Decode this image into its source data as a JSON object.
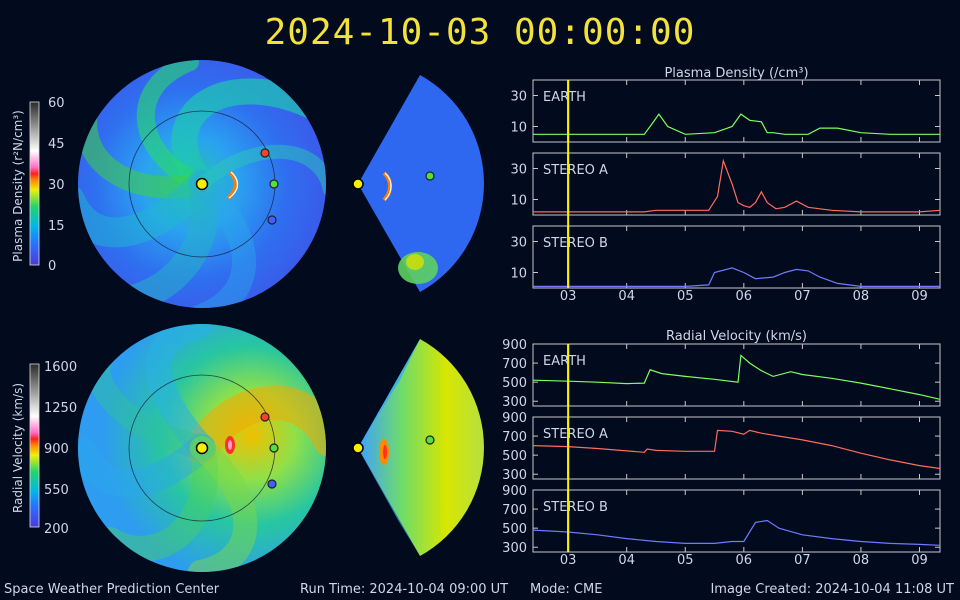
{
  "title": "2024-10-03  00:00:00",
  "footer": {
    "left": "Space Weather Prediction Center",
    "run_time": "Run Time: 2024-10-04 09:00 UT",
    "mode": "Mode: CME",
    "created": "Image Created: 2024-10-04 11:08 UT"
  },
  "colorbars": [
    {
      "label": "Plasma Density (r²N/cm³)",
      "ticks": [
        "0",
        "15",
        "30",
        "45",
        "60"
      ]
    },
    {
      "label": "Radial Velocity (km/s)",
      "ticks": [
        "200",
        "550",
        "900",
        "1250",
        "1600"
      ]
    }
  ],
  "colors": {
    "earth": "#7cff5e",
    "stereo_a": "#ff6b5e",
    "stereo_b": "#6e7bff",
    "marker": "#f4f000",
    "accent": "#f2e23a"
  },
  "chart_data": [
    {
      "type": "line",
      "title": "Plasma Density (/cm³)",
      "x_tick_labels": [
        "03",
        "04",
        "05",
        "06",
        "07",
        "08",
        "09"
      ],
      "x_ticks_days": [
        3,
        4,
        5,
        6,
        7,
        8,
        9
      ],
      "xlim": [
        2.4,
        9.35
      ],
      "current_time_day": 3.0,
      "panels": [
        {
          "name": "EARTH",
          "color": "#7cff5e",
          "ylim": [
            0,
            40
          ],
          "yticks": [
            10,
            30
          ],
          "x": [
            2.4,
            3.0,
            4.0,
            4.3,
            4.4,
            4.55,
            4.7,
            5.0,
            5.5,
            5.8,
            5.95,
            6.1,
            6.3,
            6.4,
            6.5,
            6.7,
            6.9,
            7.1,
            7.3,
            7.6,
            8.0,
            8.5,
            9.0,
            9.35
          ],
          "y": [
            5,
            5,
            5,
            5,
            10,
            18,
            10,
            5,
            6,
            10,
            18,
            14,
            13,
            6,
            6,
            5,
            5,
            5,
            9,
            9,
            6,
            5,
            5,
            5
          ]
        },
        {
          "name": "STEREO A",
          "color": "#ff6b5e",
          "ylim": [
            0,
            40
          ],
          "yticks": [
            10,
            30
          ],
          "x": [
            2.4,
            3.5,
            4.3,
            4.5,
            5.4,
            5.55,
            5.65,
            5.8,
            5.9,
            6.0,
            6.1,
            6.2,
            6.3,
            6.4,
            6.55,
            6.7,
            6.9,
            7.1,
            7.5,
            8.0,
            8.5,
            9.0,
            9.35
          ],
          "y": [
            2,
            2,
            2,
            3,
            3,
            12,
            35,
            20,
            8,
            6,
            5,
            8,
            15,
            8,
            4,
            5,
            9,
            5,
            3,
            2,
            2,
            2,
            3
          ]
        },
        {
          "name": "STEREO B",
          "color": "#6e7bff",
          "ylim": [
            0,
            40
          ],
          "yticks": [
            10,
            30
          ],
          "x": [
            2.4,
            3.5,
            4.5,
            5.0,
            5.4,
            5.5,
            5.8,
            6.0,
            6.2,
            6.5,
            6.7,
            6.9,
            7.1,
            7.3,
            7.6,
            8.0,
            8.5,
            9.0,
            9.35
          ],
          "y": [
            1,
            1,
            1,
            1,
            2,
            10,
            13,
            10,
            6,
            7,
            10,
            12,
            11,
            7,
            3,
            1,
            1,
            1,
            1
          ]
        }
      ]
    },
    {
      "type": "line",
      "title": "Radial Velocity (km/s)",
      "x_tick_labels": [
        "03",
        "04",
        "05",
        "06",
        "07",
        "08",
        "09"
      ],
      "x_ticks_days": [
        3,
        4,
        5,
        6,
        7,
        8,
        9
      ],
      "xlim": [
        2.4,
        9.35
      ],
      "current_time_day": 3.0,
      "panels": [
        {
          "name": "EARTH",
          "color": "#7cff5e",
          "ylim": [
            250,
            900
          ],
          "yticks": [
            300,
            500,
            700,
            900
          ],
          "x": [
            2.4,
            3.0,
            3.5,
            4.0,
            4.3,
            4.4,
            4.6,
            5.0,
            5.5,
            5.9,
            5.95,
            6.1,
            6.3,
            6.5,
            6.8,
            7.0,
            7.5,
            8.0,
            8.5,
            9.0,
            9.35
          ],
          "y": [
            520,
            510,
            500,
            485,
            490,
            630,
            590,
            560,
            530,
            500,
            780,
            700,
            620,
            560,
            610,
            580,
            540,
            490,
            430,
            370,
            320
          ]
        },
        {
          "name": "STEREO A",
          "color": "#ff6b5e",
          "ylim": [
            250,
            900
          ],
          "yticks": [
            300,
            500,
            700,
            900
          ],
          "x": [
            2.4,
            3.0,
            3.5,
            4.0,
            4.3,
            4.35,
            4.5,
            5.0,
            5.5,
            5.55,
            5.8,
            6.0,
            6.1,
            6.3,
            6.6,
            7.0,
            7.5,
            8.0,
            8.5,
            9.0,
            9.35
          ],
          "y": [
            600,
            590,
            570,
            545,
            530,
            565,
            550,
            540,
            540,
            760,
            750,
            720,
            760,
            730,
            700,
            660,
            600,
            520,
            450,
            390,
            360
          ]
        },
        {
          "name": "STEREO B",
          "color": "#6e7bff",
          "ylim": [
            250,
            900
          ],
          "yticks": [
            300,
            500,
            700,
            900
          ],
          "x": [
            2.4,
            3.0,
            3.5,
            4.0,
            4.5,
            5.0,
            5.5,
            5.8,
            6.0,
            6.2,
            6.4,
            6.6,
            7.0,
            7.5,
            8.0,
            8.5,
            9.0,
            9.35
          ],
          "y": [
            480,
            460,
            430,
            390,
            360,
            340,
            340,
            360,
            360,
            560,
            580,
            500,
            430,
            390,
            360,
            340,
            330,
            320
          ]
        }
      ]
    }
  ]
}
